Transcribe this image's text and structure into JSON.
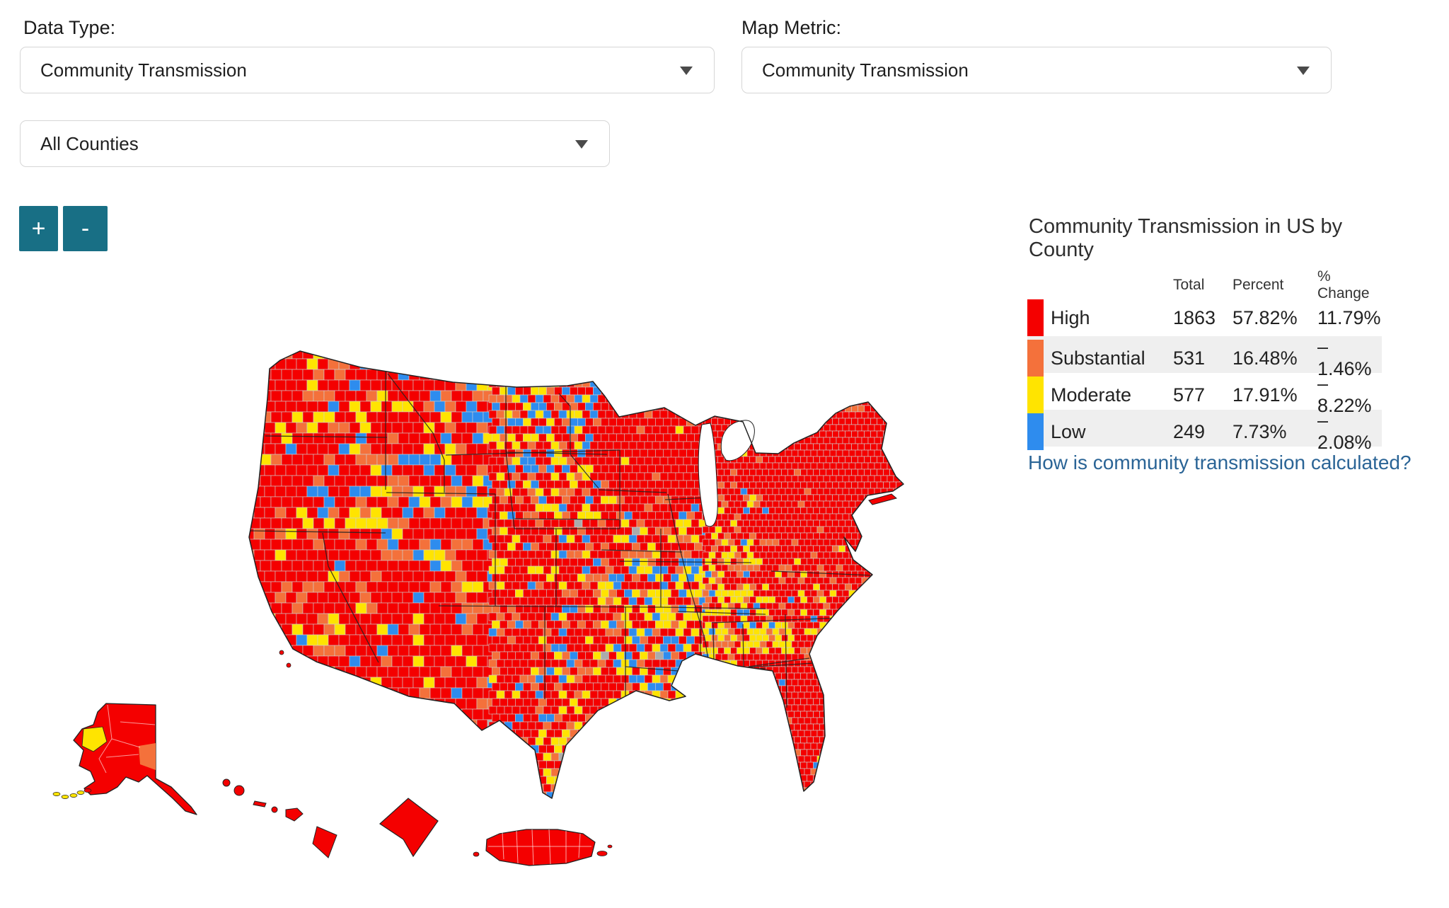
{
  "controls": {
    "data_type_label": "Data Type:",
    "data_type_value": "Community Transmission",
    "map_metric_label": "Map Metric:",
    "map_metric_value": "Community Transmission",
    "county_filter_value": "All Counties",
    "zoom_in_label": "+",
    "zoom_out_label": "-",
    "zoom_button_color": "#186F85"
  },
  "legend": {
    "title": "Community Transmission in US by County",
    "columns": [
      "Total",
      "Percent",
      "% Change"
    ],
    "rows": [
      {
        "label": "High",
        "color": "#F40000",
        "total": "1863",
        "percent": "57.82%",
        "change": "11.79%"
      },
      {
        "label": "Substantial",
        "color": "#F4713B",
        "total": "531",
        "percent": "16.48%",
        "change": "– 1.46%"
      },
      {
        "label": "Moderate",
        "color": "#FFE400",
        "total": "577",
        "percent": "17.91%",
        "change": "– 8.22%"
      },
      {
        "label": "Low",
        "color": "#2E8CEE",
        "total": "249",
        "percent": "7.73%",
        "change": "– 2.08%"
      }
    ],
    "alt_row_bg": "#EFEFEF",
    "link_text": "How is community transmission calculated?",
    "link_color": "#2A6496"
  },
  "map": {
    "palette": {
      "high": "#F40000",
      "substantial": "#F4713B",
      "moderate": "#FFE400",
      "low": "#2E8CEE",
      "no_data": "#ABABAB"
    },
    "county_border_color": "#CFCFCF",
    "state_border_color": "#222222",
    "water_color": "#FFFFFF"
  },
  "chart_data": {
    "type": "choropleth",
    "title": "Community Transmission in US by County",
    "categories": [
      "High",
      "Substantial",
      "Moderate",
      "Low"
    ],
    "series": [
      {
        "name": "Total",
        "values": [
          1863,
          531,
          577,
          249
        ]
      },
      {
        "name": "Percent",
        "values": [
          57.82,
          16.48,
          17.91,
          7.73
        ]
      },
      {
        "name": "% Change",
        "values": [
          11.79,
          -1.46,
          -8.22,
          -2.08
        ]
      }
    ],
    "legend_position": "right"
  }
}
